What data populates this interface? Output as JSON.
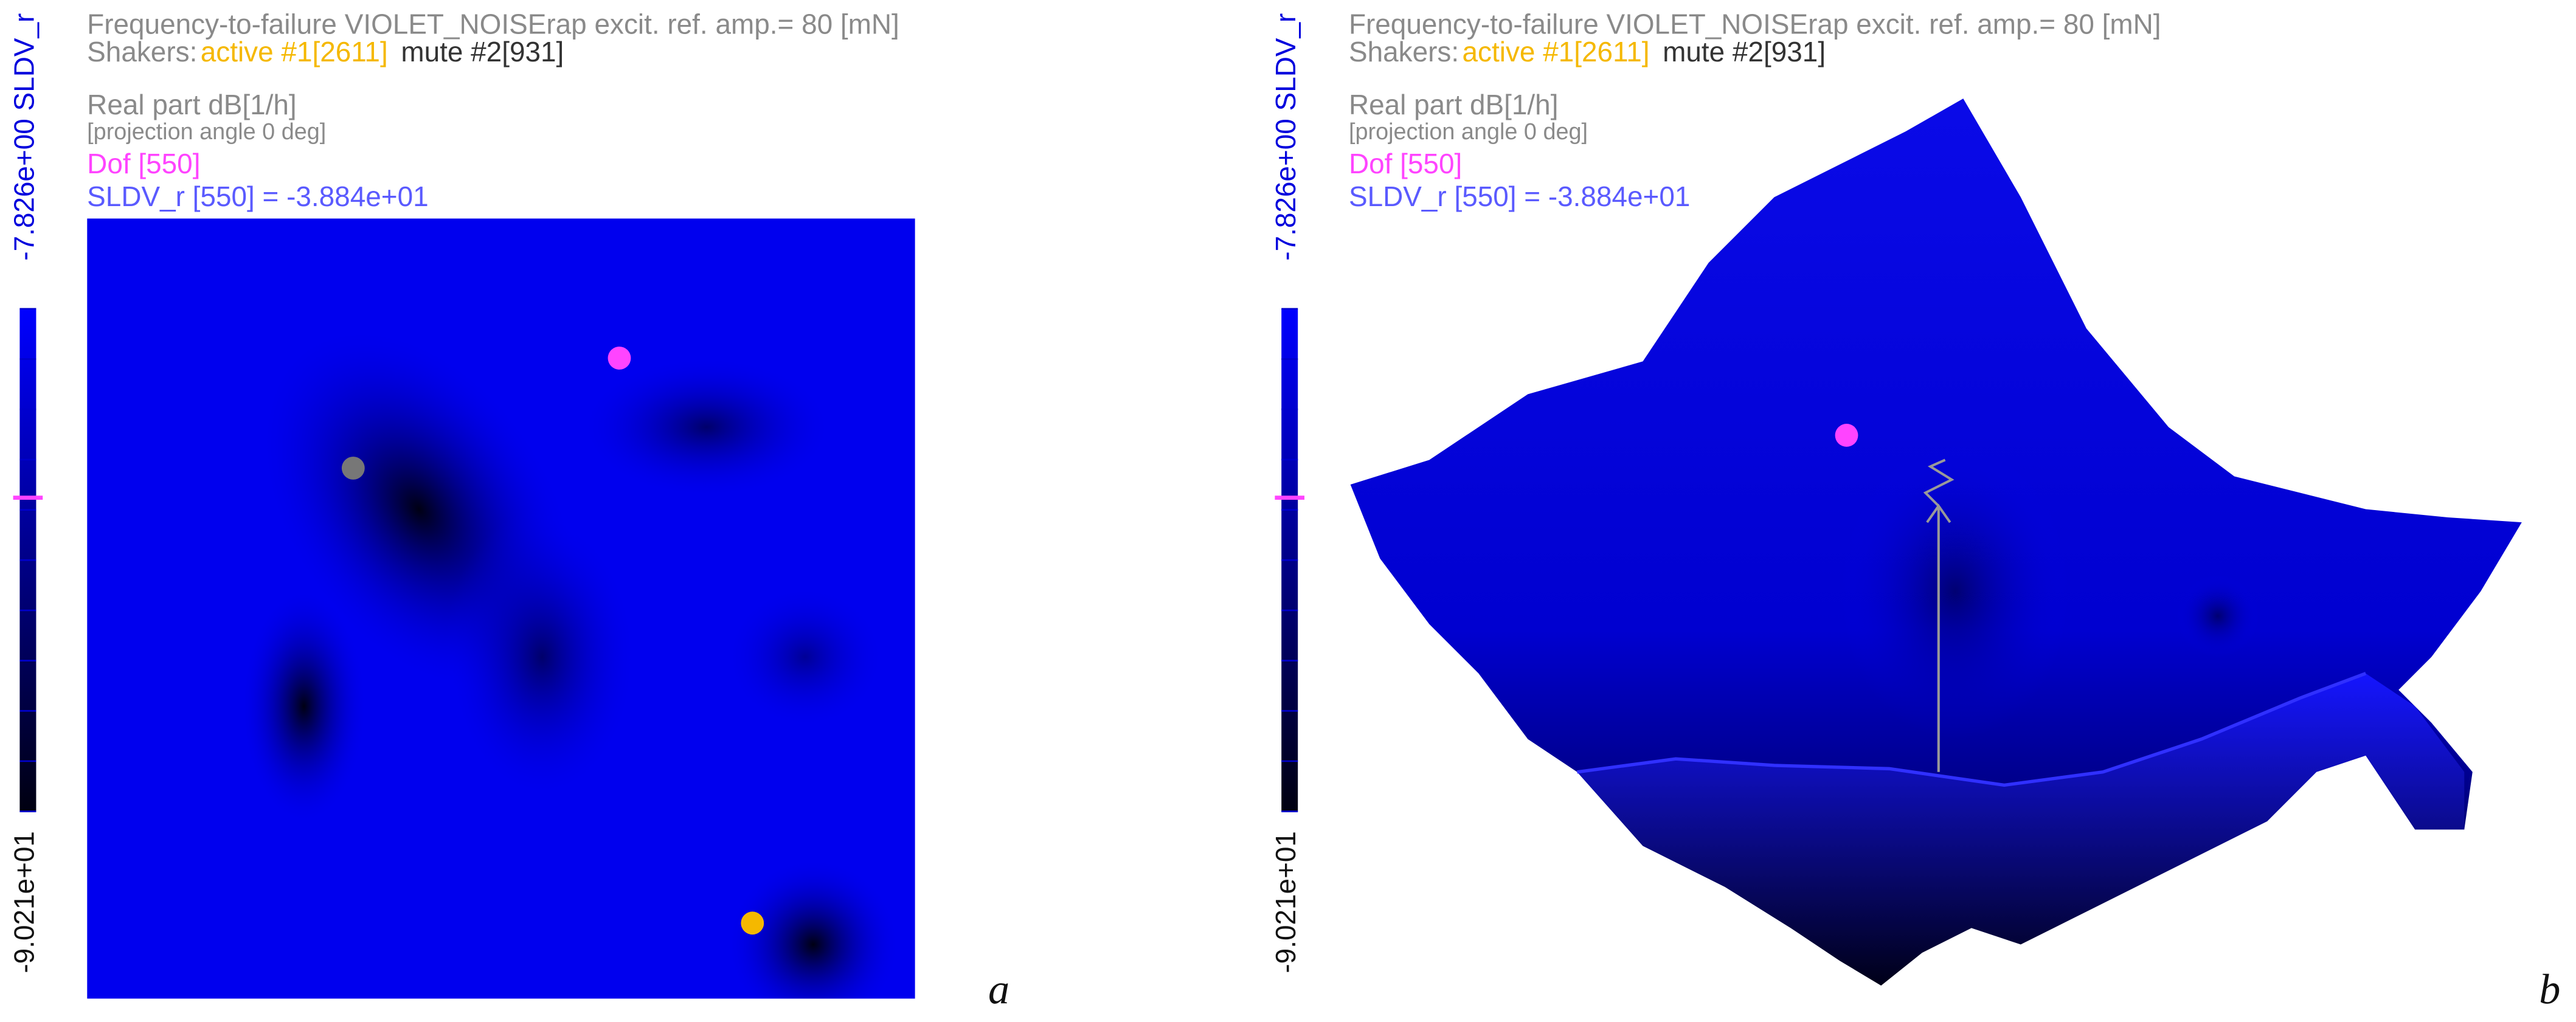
{
  "panels": [
    {
      "title": "Frequency-to-failure VIOLET_NOISErap excit. ref. amp.= 80 [mN]",
      "shakers": "Shakers:",
      "active": "active #1[2611]",
      "mute": "mute #2[931]",
      "part": "Real part dB[1/h]",
      "projection": "[projection angle 0 deg]",
      "dof": "Dof [550]",
      "sldv": "SLDV_r [550] = -3.884e+01",
      "cbar_top": "-7.826e+00 SLDV_r",
      "cbar_bottom": "-9.021e+01",
      "letter": "a"
    },
    {
      "title": "Frequency-to-failure VIOLET_NOISErap excit. ref. amp.= 80 [mN]",
      "shakers": "Shakers:",
      "active": "active #1[2611]",
      "mute": "mute #2[931]",
      "part": "Real part dB[1/h]",
      "projection": "[projection angle 0 deg]",
      "dof": "Dof [550]",
      "sldv": "SLDV_r [550] = -3.884e+01",
      "cbar_top": "-7.826e+00 SLDV_r",
      "cbar_bottom": "-9.021e+01",
      "letter": "b"
    }
  ]
}
